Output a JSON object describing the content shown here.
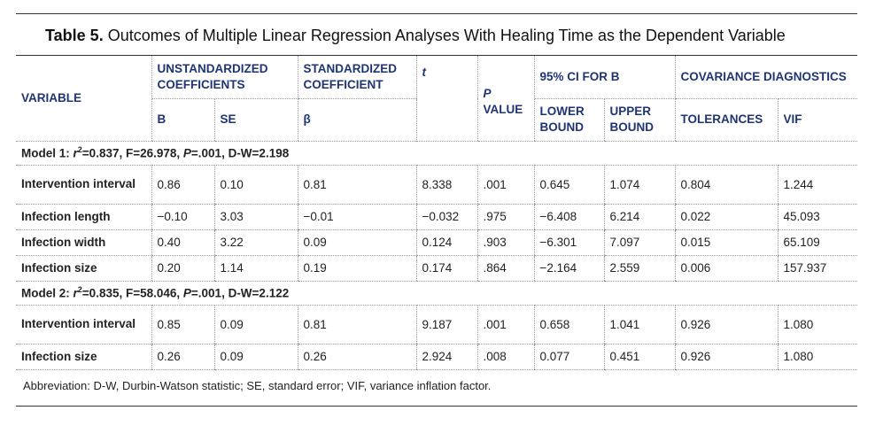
{
  "title": {
    "label": "Table 5.",
    "text": "Outcomes of Multiple Linear Regression Analyses With Healing Time as the Dependent Variable"
  },
  "headers": {
    "variable": "VARIABLE",
    "unstd": "UNSTANDARDIZED COEFFICIENTS",
    "std": "STANDARDIZED COEFFICIENT",
    "t": "t",
    "p": "P",
    "p_value": "VALUE",
    "ci": "95% CI FOR B",
    "cov": "COVARIANCE DIAGNOSTICS",
    "b": "B",
    "se": "SE",
    "beta": "β",
    "lower": "LOWER BOUND",
    "upper": "UPPER BOUND",
    "tol": "TOLERANCES",
    "vif": "VIF"
  },
  "models": [
    {
      "r": "r",
      "stats": "=0.837, F=26.978, ",
      "p_label": "P",
      "tail": "=.001, D-W=2.198",
      "rows": [
        {
          "variable": "Intervention interval",
          "b": "0.86",
          "se": "0.10",
          "beta": "0.81",
          "t": "8.338",
          "p": ".001",
          "lower": "0.645",
          "upper": "1.074",
          "tol": "0.804",
          "vif": "1.244"
        },
        {
          "variable": "Infection length",
          "b": "−0.10",
          "se": "3.03",
          "beta": "−0.01",
          "t": "−0.032",
          "p": ".975",
          "lower": "−6.408",
          "upper": "6.214",
          "tol": "0.022",
          "vif": "45.093"
        },
        {
          "variable": "Infection width",
          "b": "0.40",
          "se": "3.22",
          "beta": "0.09",
          "t": "0.124",
          "p": ".903",
          "lower": "−6.301",
          "upper": "7.097",
          "tol": "0.015",
          "vif": "65.109"
        },
        {
          "variable": "Infection size",
          "b": "0.20",
          "se": "1.14",
          "beta": "0.19",
          "t": "0.174",
          "p": ".864",
          "lower": "−2.164",
          "upper": "2.559",
          "tol": "0.006",
          "vif": "157.937"
        }
      ]
    },
    {
      "r": "r",
      "stats": "=0.835, F=58.046, ",
      "p_label": "P",
      "tail": "=.001, D-W=2.122",
      "rows": [
        {
          "variable": "Intervention interval",
          "b": "0.85",
          "se": "0.09",
          "beta": "0.81",
          "t": "9.187",
          "p": ".001",
          "lower": "0.658",
          "upper": "1.041",
          "tol": "0.926",
          "vif": "1.080"
        },
        {
          "variable": "Infection size",
          "b": "0.26",
          "se": "0.09",
          "beta": "0.26",
          "t": "2.924",
          "p": ".008",
          "lower": "0.077",
          "upper": "0.451",
          "tol": "0.926",
          "vif": "1.080"
        }
      ]
    }
  ],
  "footnote": "Abbreviation: D-W, Durbin-Watson statistic; SE, standard error; VIF, variance inflation factor."
}
